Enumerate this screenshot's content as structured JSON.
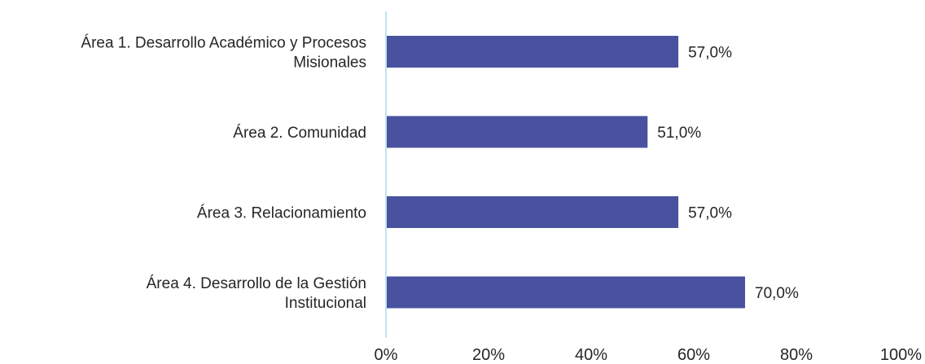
{
  "chart_data": {
    "type": "bar",
    "orientation": "horizontal",
    "categories": [
      [
        "Área 1. Desarrollo Académico y Procesos",
        "Misionales"
      ],
      [
        "Área 2. Comunidad"
      ],
      [
        "Área 3. Relacionamiento"
      ],
      [
        "Área 4. Desarrollo de la Gestión",
        "Institucional"
      ]
    ],
    "values": [
      57.0,
      51.0,
      57.0,
      70.0
    ],
    "value_labels": [
      "57,0%",
      "51,0%",
      "57,0%",
      "70,0%"
    ],
    "xlim": [
      0,
      100
    ],
    "x_ticks": [
      0,
      20,
      40,
      60,
      80,
      100
    ],
    "x_tick_labels": [
      "0%",
      "20%",
      "40%",
      "60%",
      "80%",
      "100%"
    ],
    "title": "",
    "xlabel": "",
    "ylabel": "",
    "grid": false,
    "legend": "none",
    "colors": {
      "bar": "#48529e",
      "axis": "#bfe3f2",
      "text": "#262626"
    }
  }
}
